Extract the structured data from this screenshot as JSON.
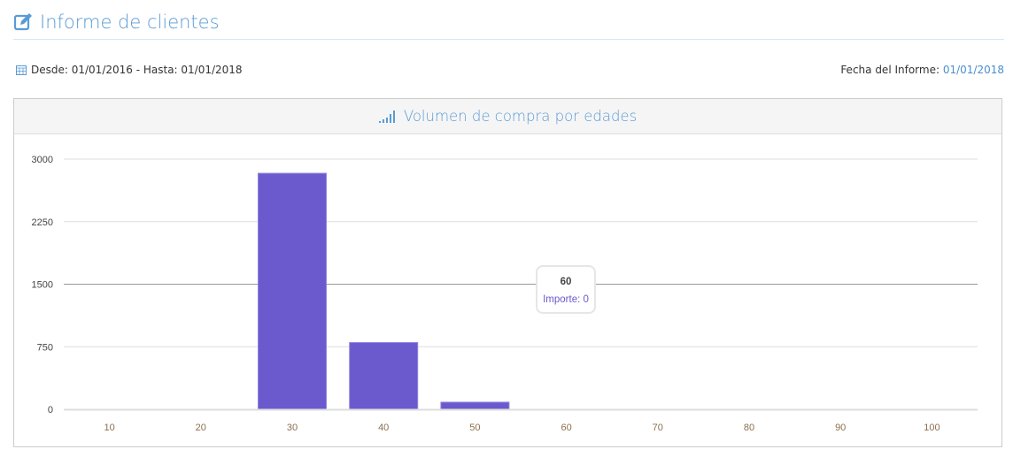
{
  "header": {
    "title": "Informe de clientes",
    "icon": "edit-icon"
  },
  "range": {
    "icon": "calendar-icon",
    "text": "Desde: 01/01/2016 - Hasta: 01/01/2018"
  },
  "report_date": {
    "label": "Fecha del Informe: ",
    "value": "01/01/2018"
  },
  "panel": {
    "title": "Volumen de compra por edades",
    "icon": "signal-icon"
  },
  "tooltip": {
    "category": "60",
    "text": "Importe: 0"
  },
  "chart_data": {
    "type": "bar",
    "title": "Volumen de compra por edades",
    "categories": [
      "10",
      "20",
      "30",
      "40",
      "50",
      "60",
      "70",
      "80",
      "90",
      "100"
    ],
    "series": [
      {
        "name": "Importe",
        "values": [
          0,
          0,
          2830,
          800,
          85,
          0,
          0,
          0,
          0,
          0
        ],
        "color": "#6a5acd"
      }
    ],
    "yticks": [
      "0",
      "750",
      "1500",
      "2250",
      "3000"
    ],
    "ylim": [
      0,
      3000
    ],
    "grid": true
  }
}
